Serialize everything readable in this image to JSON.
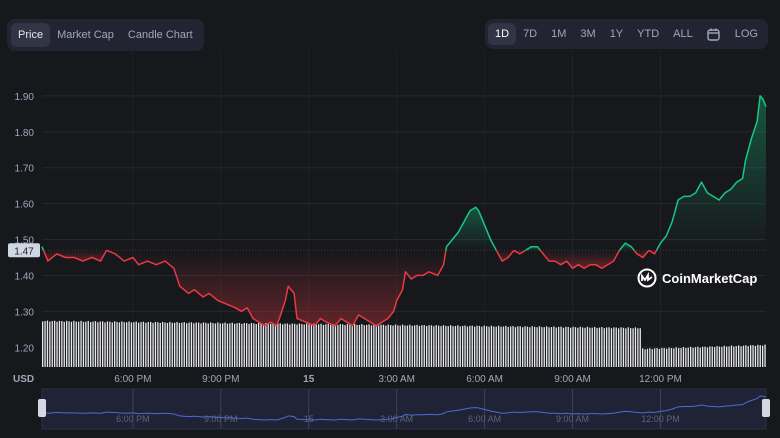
{
  "chart_type_tabs": [
    {
      "label": "Price",
      "active": true
    },
    {
      "label": "Market Cap",
      "active": false
    },
    {
      "label": "Candle Chart",
      "active": false
    }
  ],
  "range_tabs": [
    {
      "label": "1D",
      "active": true
    },
    {
      "label": "7D",
      "active": false
    },
    {
      "label": "1M",
      "active": false
    },
    {
      "label": "3M",
      "active": false
    },
    {
      "label": "1Y",
      "active": false
    },
    {
      "label": "YTD",
      "active": false
    },
    {
      "label": "ALL",
      "active": false
    }
  ],
  "calendar_icon": "calendar-icon",
  "log_label": "LOG",
  "watermark": "CoinMarketCap",
  "colors": {
    "up": "#16c784",
    "down": "#ea3943",
    "background": "#17181b"
  },
  "chart_data": {
    "type": "line",
    "y_unit_label": "USD",
    "y_ticks": [
      "1.20",
      "1.30",
      "1.40",
      "1.50",
      "1.60",
      "1.70",
      "1.80",
      "1.90"
    ],
    "ylim": [
      1.145,
      2.0
    ],
    "reference_value": 1.47,
    "reference_label": "1.47",
    "x_ticks": [
      "6:00 PM",
      "9:00 PM",
      "15",
      "3:00 AM",
      "6:00 AM",
      "9:00 AM",
      "12:00 PM"
    ],
    "x_tick_hours": [
      2,
      5,
      8,
      11,
      14,
      17,
      20
    ],
    "x_range_hours": [
      -1.1,
      23.6
    ],
    "series": [
      {
        "points": [
          [
            -1.1,
            1.48
          ],
          [
            -0.9,
            1.44
          ],
          [
            -0.6,
            1.46
          ],
          [
            -0.3,
            1.45
          ],
          [
            0,
            1.45
          ],
          [
            0.3,
            1.44
          ],
          [
            0.6,
            1.45
          ],
          [
            0.9,
            1.44
          ],
          [
            1.1,
            1.47
          ],
          [
            1.4,
            1.46
          ],
          [
            1.7,
            1.44
          ],
          [
            2.0,
            1.45
          ],
          [
            2.2,
            1.43
          ],
          [
            2.5,
            1.44
          ],
          [
            2.8,
            1.43
          ],
          [
            3.1,
            1.44
          ],
          [
            3.4,
            1.42
          ],
          [
            3.6,
            1.37
          ],
          [
            3.9,
            1.35
          ],
          [
            4.1,
            1.36
          ],
          [
            4.4,
            1.34
          ],
          [
            4.6,
            1.35
          ],
          [
            4.9,
            1.33
          ],
          [
            5.2,
            1.32
          ],
          [
            5.5,
            1.31
          ],
          [
            5.7,
            1.3
          ],
          [
            5.9,
            1.31
          ],
          [
            6.1,
            1.28
          ],
          [
            6.3,
            1.27
          ],
          [
            6.5,
            1.26
          ],
          [
            6.7,
            1.27
          ],
          [
            6.9,
            1.26
          ],
          [
            7.0,
            1.28
          ],
          [
            7.2,
            1.33
          ],
          [
            7.3,
            1.37
          ],
          [
            7.5,
            1.35
          ],
          [
            7.6,
            1.28
          ],
          [
            7.9,
            1.27
          ],
          [
            8.2,
            1.26
          ],
          [
            8.4,
            1.28
          ],
          [
            8.6,
            1.27
          ],
          [
            8.9,
            1.26
          ],
          [
            9.1,
            1.28
          ],
          [
            9.3,
            1.27
          ],
          [
            9.5,
            1.26
          ],
          [
            9.7,
            1.29
          ],
          [
            9.9,
            1.28
          ],
          [
            10.1,
            1.27
          ],
          [
            10.3,
            1.26
          ],
          [
            10.5,
            1.27
          ],
          [
            10.7,
            1.28
          ],
          [
            10.9,
            1.3
          ],
          [
            11.0,
            1.33
          ],
          [
            11.2,
            1.36
          ],
          [
            11.3,
            1.41
          ],
          [
            11.5,
            1.39
          ],
          [
            11.7,
            1.4
          ],
          [
            11.9,
            1.4
          ],
          [
            12.1,
            1.41
          ],
          [
            12.4,
            1.4
          ],
          [
            12.6,
            1.43
          ],
          [
            12.7,
            1.48
          ],
          [
            12.9,
            1.5
          ],
          [
            13.1,
            1.52
          ],
          [
            13.3,
            1.55
          ],
          [
            13.5,
            1.58
          ],
          [
            13.7,
            1.59
          ],
          [
            13.8,
            1.58
          ],
          [
            14.0,
            1.54
          ],
          [
            14.2,
            1.5
          ],
          [
            14.4,
            1.47
          ],
          [
            14.6,
            1.44
          ],
          [
            14.8,
            1.45
          ],
          [
            15.0,
            1.47
          ],
          [
            15.2,
            1.46
          ],
          [
            15.4,
            1.47
          ],
          [
            15.6,
            1.48
          ],
          [
            15.8,
            1.48
          ],
          [
            16.0,
            1.46
          ],
          [
            16.2,
            1.44
          ],
          [
            16.4,
            1.44
          ],
          [
            16.6,
            1.43
          ],
          [
            16.8,
            1.44
          ],
          [
            17.0,
            1.42
          ],
          [
            17.2,
            1.43
          ],
          [
            17.4,
            1.42
          ],
          [
            17.6,
            1.43
          ],
          [
            17.8,
            1.43
          ],
          [
            18.0,
            1.42
          ],
          [
            18.2,
            1.43
          ],
          [
            18.4,
            1.44
          ],
          [
            18.6,
            1.47
          ],
          [
            18.8,
            1.49
          ],
          [
            19.0,
            1.48
          ],
          [
            19.2,
            1.46
          ],
          [
            19.4,
            1.45
          ],
          [
            19.6,
            1.47
          ],
          [
            19.8,
            1.46
          ],
          [
            20.0,
            1.49
          ],
          [
            20.2,
            1.51
          ],
          [
            20.4,
            1.55
          ],
          [
            20.6,
            1.61
          ],
          [
            20.8,
            1.62
          ],
          [
            21.0,
            1.62
          ],
          [
            21.2,
            1.63
          ],
          [
            21.4,
            1.66
          ],
          [
            21.6,
            1.63
          ],
          [
            21.8,
            1.62
          ],
          [
            22.0,
            1.61
          ],
          [
            22.2,
            1.63
          ],
          [
            22.4,
            1.64
          ],
          [
            22.6,
            1.66
          ],
          [
            22.8,
            1.67
          ],
          [
            22.9,
            1.72
          ],
          [
            23.1,
            1.78
          ],
          [
            23.3,
            1.83
          ],
          [
            23.4,
            1.9
          ],
          [
            23.5,
            1.89
          ],
          [
            23.6,
            1.87
          ]
        ]
      }
    ]
  }
}
